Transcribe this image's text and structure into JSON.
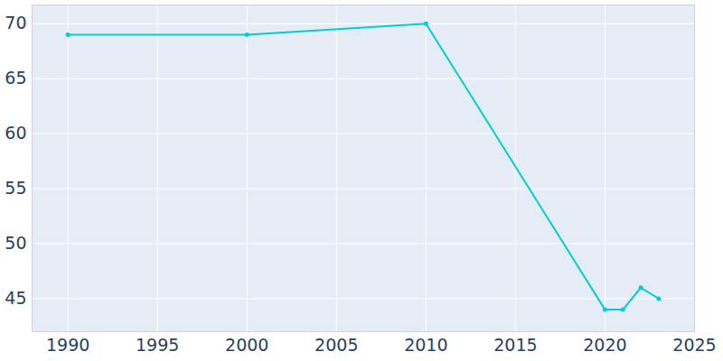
{
  "chart_data": {
    "type": "line",
    "x": [
      1990,
      2000,
      2010,
      2020,
      2021,
      2022,
      2023
    ],
    "values": [
      69,
      69,
      70,
      44,
      44,
      46,
      45
    ],
    "color": "#00ced1",
    "marker": "circle",
    "line_style": "solid",
    "xlim": [
      1988,
      2025
    ],
    "xticks": [
      1990,
      1995,
      2000,
      2005,
      2010,
      2015,
      2020,
      2025
    ],
    "ylim": [
      42,
      71.7
    ],
    "yticks": [
      45,
      50,
      55,
      60,
      65,
      70
    ],
    "grid": true
  }
}
